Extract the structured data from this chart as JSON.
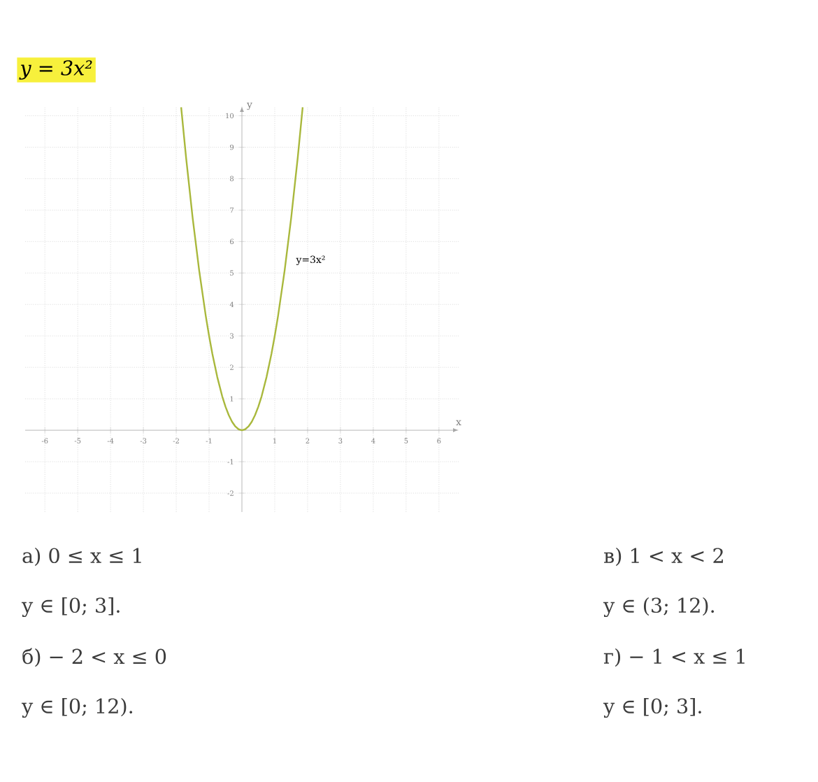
{
  "chart_data": {
    "type": "line",
    "title": "y = 3x²",
    "xlabel": "x",
    "ylabel": "y",
    "x": [
      -1.85,
      -1.7,
      -1.5,
      -1.3,
      -1.1,
      -1,
      -0.9,
      -0.75,
      -0.6,
      -0.5,
      -0.4,
      -0.3,
      -0.2,
      -0.1,
      0,
      0.1,
      0.2,
      0.3,
      0.4,
      0.5,
      0.6,
      0.75,
      0.9,
      1,
      1.1,
      1.3,
      1.5,
      1.7,
      1.85
    ],
    "series": [
      {
        "color": "#a9b83c",
        "values": [
          10.27,
          8.67,
          6.75,
          5.07,
          3.63,
          3,
          2.43,
          1.69,
          1.08,
          0.75,
          0.48,
          0.27,
          0.12,
          0.03,
          0,
          0.03,
          0.12,
          0.27,
          0.48,
          0.75,
          1.08,
          1.69,
          2.43,
          3,
          3.63,
          5.07,
          6.75,
          8.67,
          10.27
        ]
      }
    ],
    "xlim": [
      -6.6,
      6.6
    ],
    "ylim": [
      -2.6,
      10.3
    ],
    "xticks": [
      -6,
      -5,
      -4,
      -3,
      -2,
      -1,
      1,
      2,
      3,
      4,
      5,
      6
    ],
    "yticks": [
      -2,
      -1,
      1,
      2,
      3,
      4,
      5,
      6,
      7,
      8,
      9,
      10
    ],
    "grid": true,
    "marker": "none",
    "line_style": "solid",
    "annotations": [
      {
        "text": "y=3x²",
        "x": 1.5,
        "y": 5.4
      },
      "а) 0 ≤ x ≤ 1",
      "y ∈ [0; 3].",
      "б) − 2 < x ≤ 0",
      "y ∈ [0; 12).",
      "в) 1 < x < 2",
      "y ∈ (3; 12).",
      "г) − 1 < x ≤ 1",
      "y ∈ [0; 3]."
    ]
  }
}
